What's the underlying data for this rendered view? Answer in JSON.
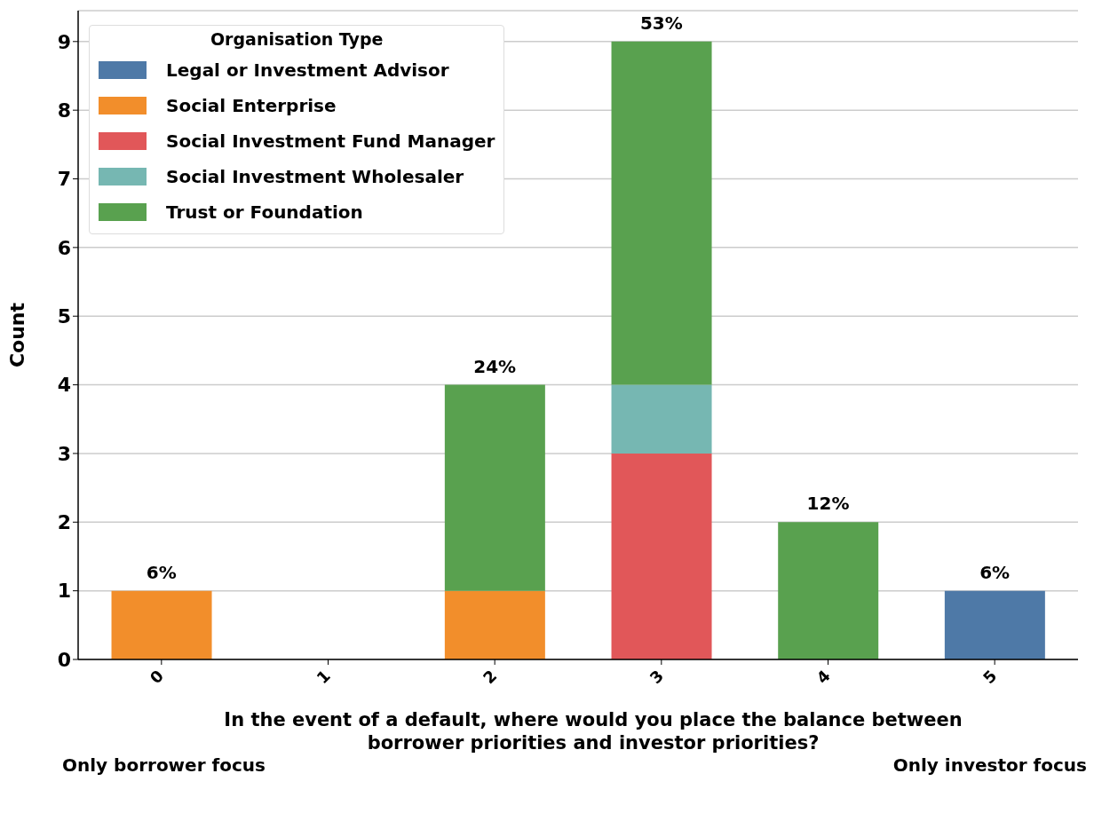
{
  "chart_data": {
    "type": "bar",
    "stacked": true,
    "xlabel": "In the event of a default, where would you place the balance between borrower priorities and investor priorities?",
    "ylabel": "Count",
    "legend_title": "Organisation Type",
    "categories": [
      "0",
      "1",
      "2",
      "3",
      "4",
      "5"
    ],
    "series": [
      {
        "name": "Legal or Investment Advisor",
        "color": "#4e79a7",
        "values": [
          null,
          null,
          null,
          null,
          null,
          1
        ]
      },
      {
        "name": "Social Enterprise",
        "color": "#f28e2b",
        "values": [
          1,
          null,
          1,
          null,
          null,
          null
        ]
      },
      {
        "name": "Social Investment Fund Manager",
        "color": "#e15759",
        "values": [
          null,
          null,
          null,
          3,
          null,
          null
        ]
      },
      {
        "name": "Social Investment Wholesaler",
        "color": "#76b7b2",
        "values": [
          null,
          null,
          null,
          1,
          null,
          null
        ]
      },
      {
        "name": "Trust or Foundation",
        "color": "#59a14f",
        "values": [
          null,
          0,
          3,
          5,
          2,
          null
        ]
      }
    ],
    "ylim": [
      0,
      9.45
    ],
    "yticks": [
      0,
      1,
      2,
      3,
      4,
      5,
      6,
      7,
      8,
      9
    ],
    "grid": "y",
    "legend": "top left",
    "annotations": [
      {
        "text": "6%",
        "x": "0",
        "y": 1
      },
      {
        "text": "24%",
        "x": "2",
        "y": 4
      },
      {
        "text": "53%",
        "x": "3",
        "y": 9
      },
      {
        "text": "12%",
        "x": "4",
        "y": 2
      },
      {
        "text": "6%",
        "x": "5",
        "y": 1
      },
      "Only borrower focus",
      "Only investor focus"
    ]
  }
}
